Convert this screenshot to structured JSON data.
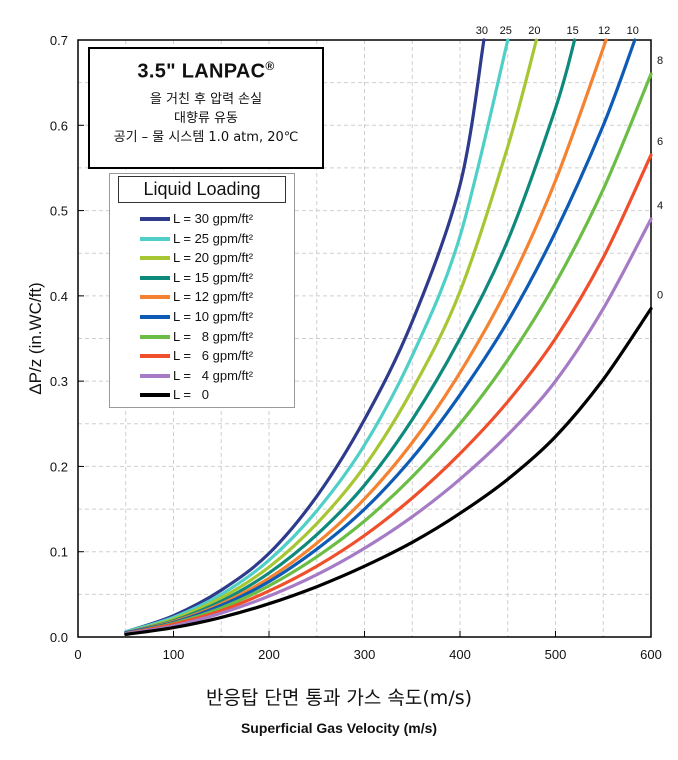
{
  "title_box": {
    "title": "3.5\" LANPAC",
    "title_mark": "®",
    "line1": "을 거친 후 압력 손실",
    "line2": "대향류 유동",
    "line3": "공기 – 물 시스템 1.0 atm, 20℃"
  },
  "legend": {
    "title": "Liquid Loading",
    "items": [
      {
        "label": "L = 30 gpm/ft²",
        "color": "#2e3a8c"
      },
      {
        "label": "L = 25 gpm/ft²",
        "color": "#4fcfc8"
      },
      {
        "label": "L = 20 gpm/ft²",
        "color": "#a7c633"
      },
      {
        "label": "L = 15 gpm/ft²",
        "color": "#0e8a7c"
      },
      {
        "label": "L = 12 gpm/ft²",
        "color": "#f58231"
      },
      {
        "label": "L = 10 gpm/ft²",
        "color": "#0d5bb5"
      },
      {
        "label": "L =   8 gpm/ft²",
        "color": "#6cbd45"
      },
      {
        "label": "L =   6 gpm/ft²",
        "color": "#ef4f2b"
      },
      {
        "label": "L =   4 gpm/ft²",
        "color": "#a67bc6"
      },
      {
        "label": "L =   0",
        "color": "#000000"
      }
    ]
  },
  "chart_data": {
    "type": "line",
    "ylabel": "ΔP/z (in.WC/ft)",
    "xlabel": "반응탑 단면 통과 가스 속도(m/s)",
    "xlabel_en": "Superficial Gas Velocity (m/s)",
    "xlim": [
      0,
      600
    ],
    "ylim": [
      0,
      0.7
    ],
    "x_ticks": [
      0,
      100,
      200,
      300,
      400,
      500,
      600
    ],
    "y_ticks": [
      0.0,
      0.1,
      0.2,
      0.3,
      0.4,
      0.5,
      0.6,
      0.7
    ],
    "x_tick_labels": [
      "0",
      "100",
      "200",
      "300",
      "400",
      "500",
      "600"
    ],
    "y_tick_labels": [
      "0.0",
      "0.1",
      "0.2",
      "0.3",
      "0.4",
      "0.5",
      "0.6",
      "0.7"
    ],
    "grid": true,
    "legend_position": "top-left",
    "series": [
      {
        "name": "L = 30 gpm/ft²",
        "curve_label": "30",
        "color": "#2e3a8c",
        "x": [
          50,
          100,
          150,
          200,
          250,
          300,
          350,
          400,
          425
        ],
        "y": [
          0.006,
          0.025,
          0.055,
          0.098,
          0.165,
          0.255,
          0.37,
          0.53,
          0.7
        ]
      },
      {
        "name": "L = 25 gpm/ft²",
        "curve_label": "25",
        "color": "#4fcfc8",
        "x": [
          50,
          100,
          150,
          200,
          250,
          300,
          350,
          400,
          450
        ],
        "y": [
          0.006,
          0.023,
          0.05,
          0.09,
          0.148,
          0.225,
          0.33,
          0.47,
          0.7
        ]
      },
      {
        "name": "L = 20 gpm/ft²",
        "curve_label": "20",
        "color": "#a7c633",
        "x": [
          50,
          100,
          150,
          200,
          250,
          300,
          350,
          400,
          450,
          480
        ],
        "y": [
          0.005,
          0.021,
          0.046,
          0.082,
          0.133,
          0.2,
          0.29,
          0.405,
          0.575,
          0.7
        ]
      },
      {
        "name": "L = 15 gpm/ft²",
        "curve_label": "15",
        "color": "#0e8a7c",
        "x": [
          50,
          100,
          150,
          200,
          250,
          300,
          350,
          400,
          450,
          500,
          520
        ],
        "y": [
          0.005,
          0.019,
          0.042,
          0.075,
          0.12,
          0.178,
          0.255,
          0.35,
          0.465,
          0.62,
          0.7
        ]
      },
      {
        "name": "L = 12 gpm/ft²",
        "curve_label": "12",
        "color": "#f58231",
        "x": [
          50,
          100,
          150,
          200,
          250,
          300,
          350,
          400,
          450,
          500,
          553
        ],
        "y": [
          0.005,
          0.018,
          0.039,
          0.069,
          0.11,
          0.162,
          0.228,
          0.31,
          0.41,
          0.535,
          0.7
        ]
      },
      {
        "name": "L = 10 gpm/ft²",
        "curve_label": "10",
        "color": "#0d5bb5",
        "x": [
          50,
          100,
          150,
          200,
          250,
          300,
          350,
          400,
          450,
          500,
          550,
          583
        ],
        "y": [
          0.005,
          0.017,
          0.037,
          0.065,
          0.103,
          0.15,
          0.21,
          0.284,
          0.37,
          0.475,
          0.6,
          0.7
        ]
      },
      {
        "name": "L =   8 gpm/ft²",
        "curve_label": "8",
        "color": "#6cbd45",
        "x": [
          50,
          100,
          150,
          200,
          250,
          300,
          350,
          400,
          450,
          500,
          550,
          600
        ],
        "y": [
          0.004,
          0.016,
          0.034,
          0.06,
          0.094,
          0.136,
          0.188,
          0.25,
          0.325,
          0.415,
          0.525,
          0.66
        ]
      },
      {
        "name": "L =   6 gpm/ft²",
        "curve_label": "6",
        "color": "#ef4f2b",
        "x": [
          50,
          100,
          150,
          200,
          250,
          300,
          350,
          400,
          450,
          500,
          550,
          600
        ],
        "y": [
          0.004,
          0.015,
          0.031,
          0.054,
          0.083,
          0.119,
          0.163,
          0.215,
          0.276,
          0.35,
          0.445,
          0.565
        ]
      },
      {
        "name": "L =   4 gpm/ft²",
        "curve_label": "4",
        "color": "#a67bc6",
        "x": [
          50,
          100,
          150,
          200,
          250,
          300,
          350,
          400,
          450,
          500,
          550,
          600
        ],
        "y": [
          0.004,
          0.013,
          0.028,
          0.048,
          0.073,
          0.104,
          0.141,
          0.185,
          0.237,
          0.3,
          0.385,
          0.49
        ]
      },
      {
        "name": "L =   0",
        "curve_label": "0",
        "color": "#000000",
        "x": [
          50,
          100,
          150,
          200,
          250,
          300,
          350,
          400,
          450,
          500,
          550,
          600
        ],
        "y": [
          0.003,
          0.011,
          0.023,
          0.039,
          0.059,
          0.083,
          0.111,
          0.145,
          0.185,
          0.235,
          0.302,
          0.385
        ]
      }
    ]
  }
}
